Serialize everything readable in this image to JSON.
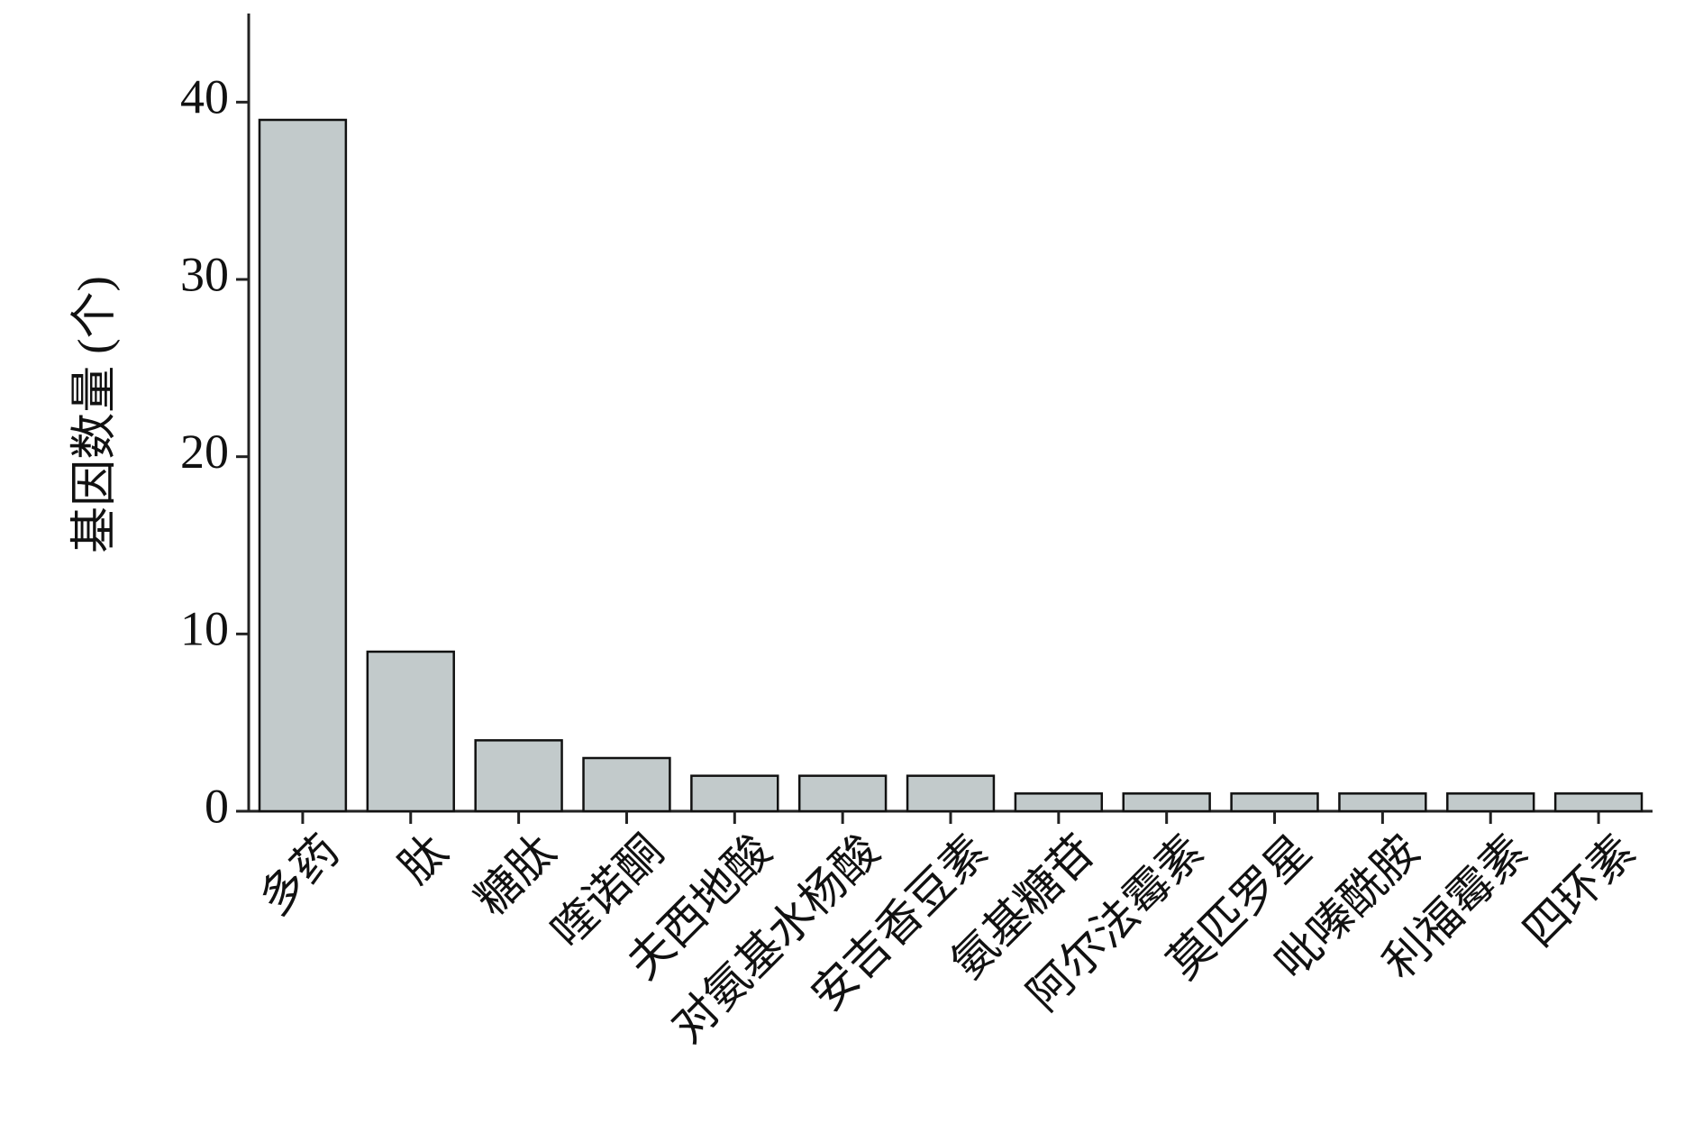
{
  "chart_data": {
    "type": "bar",
    "y_label": "基因数量 (个)",
    "categories": [
      "多药",
      "肽",
      "糖肽",
      "喹诺酮",
      "夫西地酸",
      "对氨基水杨酸",
      "安吉香豆素",
      "氨基糖苷",
      "阿尔法霉素",
      "莫匹罗星",
      "吡嗪酰胺",
      "利福霉素",
      "四环素"
    ],
    "values": [
      39,
      9,
      4,
      3,
      2,
      2,
      2,
      1,
      1,
      1,
      1,
      1,
      1
    ],
    "color": "#c2cacb",
    "ylim": [
      0,
      45
    ],
    "yticks": [
      0,
      10,
      20,
      30,
      40
    ],
    "grid": false
  }
}
